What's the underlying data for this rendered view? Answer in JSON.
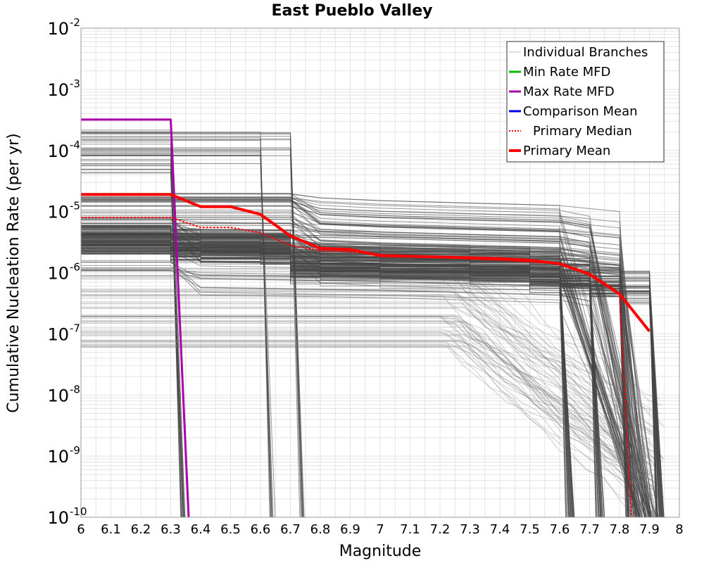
{
  "chart_data": {
    "type": "line",
    "title": "East Pueblo Valley",
    "xlabel": "Magnitude",
    "ylabel": "Cumulative Nucleation Rate (per yr)",
    "xlim": [
      6,
      8
    ],
    "ylim": [
      1e-10,
      0.01
    ],
    "y_scale": "log",
    "grid": true,
    "x_ticks": [
      "6",
      "6.1",
      "6.2",
      "6.3",
      "6.4",
      "6.5",
      "6.6",
      "6.7",
      "6.8",
      "6.9",
      "7",
      "7.1",
      "7.2",
      "7.3",
      "7.4",
      "7.5",
      "7.6",
      "7.7",
      "7.8",
      "7.9",
      "8"
    ],
    "y_ticks": [
      {
        "base": "10",
        "exp": "-2"
      },
      {
        "base": "10",
        "exp": "-3"
      },
      {
        "base": "10",
        "exp": "-4"
      },
      {
        "base": "10",
        "exp": "-5"
      },
      {
        "base": "10",
        "exp": "-6"
      },
      {
        "base": "10",
        "exp": "-7"
      },
      {
        "base": "10",
        "exp": "-8"
      },
      {
        "base": "10",
        "exp": "-9"
      },
      {
        "base": "10",
        "exp": "-10"
      }
    ],
    "legend_position": "top-right",
    "legend": [
      {
        "label": "Individual Branches",
        "color": "#bbbbbb",
        "style": "solid",
        "width": 1
      },
      {
        "label": "Min Rate MFD",
        "color": "#00bb00",
        "style": "solid",
        "width": 3
      },
      {
        "label": "Max Rate MFD",
        "color": "#aa00aa",
        "style": "solid",
        "width": 3
      },
      {
        "label": "Comparison Mean",
        "color": "#0000ee",
        "style": "solid",
        "width": 3
      },
      {
        "label": "Primary Median",
        "color": "#ff0000",
        "style": "dotted",
        "width": 2
      },
      {
        "label": "Primary Mean",
        "color": "#ff0000",
        "style": "solid",
        "width": 4
      }
    ],
    "series": [
      {
        "name": "Max Rate MFD",
        "color": "#aa00aa",
        "x": [
          6.0,
          6.3,
          6.36
        ],
        "y": [
          0.00032,
          0.00032,
          1e-10
        ]
      },
      {
        "name": "Primary Median",
        "color": "#ff0000",
        "x": [
          6.0,
          6.3,
          6.4,
          6.5,
          6.6,
          6.7,
          6.8,
          6.9,
          7.0,
          7.5,
          7.6,
          7.7,
          7.8,
          7.84
        ],
        "y": [
          8e-06,
          8e-06,
          5.5e-06,
          5.5e-06,
          4.5e-06,
          2.8e-06,
          2.3e-06,
          2.2e-06,
          2e-06,
          1.5e-06,
          1.4e-06,
          9e-07,
          4.5e-07,
          1e-10
        ]
      },
      {
        "name": "Primary Mean",
        "color": "#ff0000",
        "x": [
          6.0,
          6.3,
          6.4,
          6.5,
          6.6,
          6.7,
          6.8,
          6.9,
          7.0,
          7.2,
          7.4,
          7.5,
          7.6,
          7.7,
          7.8,
          7.9
        ],
        "y": [
          1.9e-05,
          1.9e-05,
          1.2e-05,
          1.2e-05,
          9e-06,
          4e-06,
          2.5e-06,
          2.4e-06,
          1.9e-06,
          1.8e-06,
          1.7e-06,
          1.6e-06,
          1.4e-06,
          9.5e-07,
          4.5e-07,
          1.1e-07
        ]
      }
    ],
    "branch_groups": [
      {
        "rate_min": 2e-06,
        "rate_max": 2e-05,
        "count": 55,
        "drop_mag": 6.7
      },
      {
        "rate_min": 1e-06,
        "rate_max": 1e-05,
        "count": 35,
        "drop_mag": 6.3
      },
      {
        "rate_min": 4e-05,
        "rate_max": 0.00022,
        "count": 18,
        "drop_mag": 6.3
      },
      {
        "rate_min": 6e-05,
        "rate_max": 0.00022,
        "count": 10,
        "drop_mag": 6.6
      },
      {
        "rate_min": 3e-05,
        "rate_max": 0.0002,
        "count": 10,
        "drop_mag": 6.7
      },
      {
        "rate_min": 6e-08,
        "rate_max": 1.2e-06,
        "count": 60,
        "drop_mag": 7.2
      },
      {
        "rate_min": 2e-06,
        "rate_max": 6e-06,
        "count": 30,
        "drop_mag": 7.6
      },
      {
        "rate_min": 2e-06,
        "rate_max": 6e-06,
        "count": 30,
        "drop_mag": 7.7
      },
      {
        "rate_min": 2e-06,
        "rate_max": 6e-06,
        "count": 30,
        "drop_mag": 7.8
      },
      {
        "rate_min": 2e-06,
        "rate_max": 6e-06,
        "count": 40,
        "drop_mag": 7.9
      }
    ]
  }
}
